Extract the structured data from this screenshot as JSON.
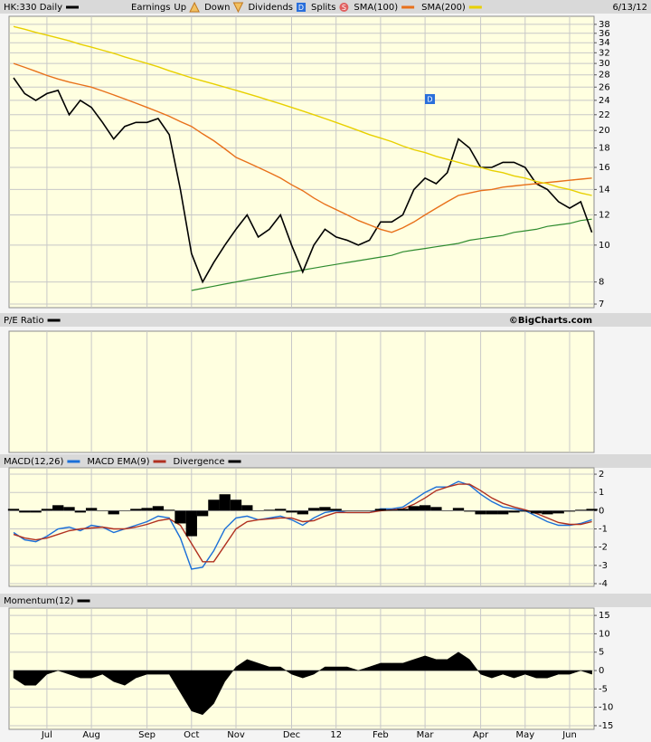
{
  "chart_data": [
    {
      "type": "line",
      "log_scale": true,
      "grid": true,
      "date": "6/13/12",
      "events_legend": {
        "label": "Earnings",
        "up": "Up",
        "down": "Down",
        "dividends": "Dividends",
        "dividend_icon": "D",
        "splits": "Splits",
        "split_icon": "S"
      },
      "annotation": "D",
      "ylim": [
        6.85,
        39.9
      ],
      "yticks": [
        7,
        8,
        10,
        12,
        14,
        16,
        18,
        20,
        22,
        24,
        26,
        28,
        30,
        32,
        34,
        36,
        38
      ],
      "series": [
        {
          "name": "HK:330 Daily",
          "color": "#000000",
          "values": [
            27.5,
            25,
            24,
            25,
            25.5,
            22,
            24,
            23,
            21,
            19,
            20.5,
            21,
            21,
            21.5,
            19.5,
            14,
            9.5,
            8,
            9,
            10,
            11,
            12,
            10.5,
            11,
            12,
            10,
            8.5,
            10,
            11,
            10.5,
            10.3,
            10,
            10.3,
            11.5,
            11.5,
            12,
            14,
            15,
            14.5,
            15.5,
            19,
            18,
            16,
            16,
            16.5,
            16.5,
            16,
            14.5,
            14,
            13,
            12.5,
            13,
            10.8
          ]
        },
        {
          "name": "SMA(100)",
          "color": "#e8701a",
          "values": [
            30,
            29.3,
            28.6,
            27.9,
            27.3,
            26.8,
            26.4,
            26,
            25.4,
            24.8,
            24.2,
            23.6,
            23,
            22.4,
            21.8,
            21.1,
            20.5,
            19.6,
            18.8,
            17.9,
            17,
            16.5,
            16,
            15.5,
            15,
            14.4,
            13.9,
            13.3,
            12.8,
            12.4,
            12,
            11.6,
            11.3,
            11,
            10.8,
            11.1,
            11.5,
            12,
            12.5,
            13,
            13.5,
            13.7,
            13.9,
            14,
            14.2,
            14.3,
            14.4,
            14.5,
            14.6,
            14.7,
            14.8,
            14.9,
            15
          ]
        },
        {
          "name": "SMA(200)",
          "color": "#e8d000",
          "values": [
            37.5,
            36.9,
            36.2,
            35.6,
            35,
            34.4,
            33.7,
            33.1,
            32.5,
            31.9,
            31.2,
            30.6,
            30,
            29.4,
            28.7,
            28.1,
            27.5,
            27,
            26.5,
            26,
            25.5,
            25,
            24.5,
            24,
            23.5,
            23,
            22.5,
            22,
            21.5,
            21,
            20.5,
            20,
            19.5,
            19.1,
            18.7,
            18.2,
            17.8,
            17.5,
            17.1,
            16.8,
            16.5,
            16.2,
            16,
            15.7,
            15.5,
            15.2,
            15,
            14.7,
            14.5,
            14.2,
            14,
            13.7,
            13.5
          ]
        }
      ],
      "trend_line": {
        "color": "#2e8b2e",
        "values": [
          null,
          null,
          null,
          null,
          null,
          null,
          null,
          null,
          null,
          null,
          null,
          null,
          null,
          null,
          null,
          null,
          7.6,
          7.7,
          7.8,
          7.9,
          8.0,
          8.1,
          8.2,
          8.3,
          8.4,
          8.5,
          8.6,
          8.7,
          8.8,
          8.9,
          9.0,
          9.1,
          9.2,
          9.3,
          9.4,
          9.6,
          9.7,
          9.8,
          9.9,
          10.0,
          10.1,
          10.3,
          10.4,
          10.5,
          10.6,
          10.8,
          10.9,
          11.0,
          11.2,
          11.3,
          11.4,
          11.6,
          11.7
        ]
      }
    },
    {
      "type": "line",
      "title": "P/E Ratio",
      "credit": "©BigCharts.com",
      "series": []
    },
    {
      "type": "line",
      "grid": true,
      "ylim": [
        -4.15,
        2.35
      ],
      "yticks": [
        -4,
        -3,
        -2,
        -1,
        0,
        1,
        2
      ],
      "series": [
        {
          "name": "MACD(12,26)",
          "color": "#1a6fd8",
          "values": [
            -1.2,
            -1.6,
            -1.7,
            -1.4,
            -1.0,
            -0.9,
            -1.1,
            -0.8,
            -0.9,
            -1.2,
            -1.0,
            -0.8,
            -0.6,
            -0.3,
            -0.4,
            -1.5,
            -3.2,
            -3.1,
            -2.2,
            -1.0,
            -0.4,
            -0.3,
            -0.5,
            -0.4,
            -0.3,
            -0.5,
            -0.8,
            -0.4,
            -0.1,
            0,
            -0.1,
            -0.1,
            -0.1,
            0.1,
            0.1,
            0.2,
            0.6,
            1.0,
            1.3,
            1.3,
            1.6,
            1.4,
            0.9,
            0.5,
            0.2,
            0.1,
            0,
            -0.3,
            -0.6,
            -0.8,
            -0.8,
            -0.7,
            -0.5
          ]
        },
        {
          "name": "MACD EMA(9)",
          "color": "#b03020",
          "values": [
            -1.3,
            -1.5,
            -1.6,
            -1.5,
            -1.3,
            -1.1,
            -1.0,
            -0.95,
            -0.9,
            -1.0,
            -1.0,
            -0.9,
            -0.75,
            -0.55,
            -0.45,
            -0.8,
            -1.8,
            -2.8,
            -2.8,
            -1.9,
            -1.0,
            -0.6,
            -0.5,
            -0.45,
            -0.4,
            -0.4,
            -0.6,
            -0.55,
            -0.3,
            -0.1,
            -0.1,
            -0.1,
            -0.1,
            0,
            0.05,
            0.1,
            0.35,
            0.7,
            1.1,
            1.3,
            1.45,
            1.45,
            1.1,
            0.7,
            0.4,
            0.2,
            0.05,
            -0.15,
            -0.4,
            -0.65,
            -0.75,
            -0.75,
            -0.6
          ]
        },
        {
          "name": "Divergence",
          "color": "#000000",
          "style": "bar",
          "values": [
            0.1,
            -0.1,
            -0.1,
            0.1,
            0.3,
            0.2,
            -0.1,
            0.15,
            0,
            -0.2,
            0,
            0.1,
            0.15,
            0.25,
            0.05,
            -0.7,
            -1.4,
            -0.3,
            0.6,
            0.9,
            0.6,
            0.3,
            0,
            0.05,
            0.1,
            -0.1,
            -0.2,
            0.15,
            0.2,
            0.1,
            0,
            0,
            0,
            0.1,
            0.05,
            0.1,
            0.25,
            0.3,
            0.2,
            0,
            0.15,
            -0.05,
            -0.2,
            -0.2,
            -0.2,
            -0.1,
            -0.05,
            -0.15,
            -0.2,
            -0.15,
            -0.05,
            0.05,
            0.1
          ]
        }
      ]
    },
    {
      "type": "area",
      "grid": true,
      "ylim": [
        -16,
        17
      ],
      "yticks": [
        -15,
        -10,
        -5,
        0,
        5,
        10,
        15
      ],
      "series": [
        {
          "name": "Momentum(12)",
          "color": "#000000",
          "values": [
            -2,
            -4,
            -4,
            -1,
            0,
            -1,
            -2,
            -2,
            -1,
            -3,
            -4,
            -2,
            -1,
            -1,
            -1,
            -6,
            -11,
            -12,
            -9,
            -3,
            1,
            3,
            2,
            1,
            1,
            -1,
            -2,
            -1,
            1,
            1,
            1,
            0,
            1,
            2,
            2,
            2,
            3,
            4,
            3,
            3,
            5,
            3,
            -1,
            -2,
            -1,
            -2,
            -1,
            -2,
            -2,
            -1,
            -1,
            0,
            -1
          ]
        }
      ],
      "categories": [
        null,
        null,
        null,
        "Jul",
        null,
        null,
        null,
        "Aug",
        null,
        null,
        null,
        null,
        "Sep",
        null,
        null,
        null,
        "Oct",
        null,
        null,
        null,
        "Nov",
        null,
        null,
        null,
        null,
        "Dec",
        null,
        null,
        null,
        "12",
        null,
        null,
        null,
        "Feb",
        null,
        null,
        null,
        "Mar",
        null,
        null,
        null,
        null,
        "Apr",
        null,
        null,
        null,
        "May",
        null,
        null,
        null,
        "Jun",
        null,
        null
      ]
    }
  ]
}
